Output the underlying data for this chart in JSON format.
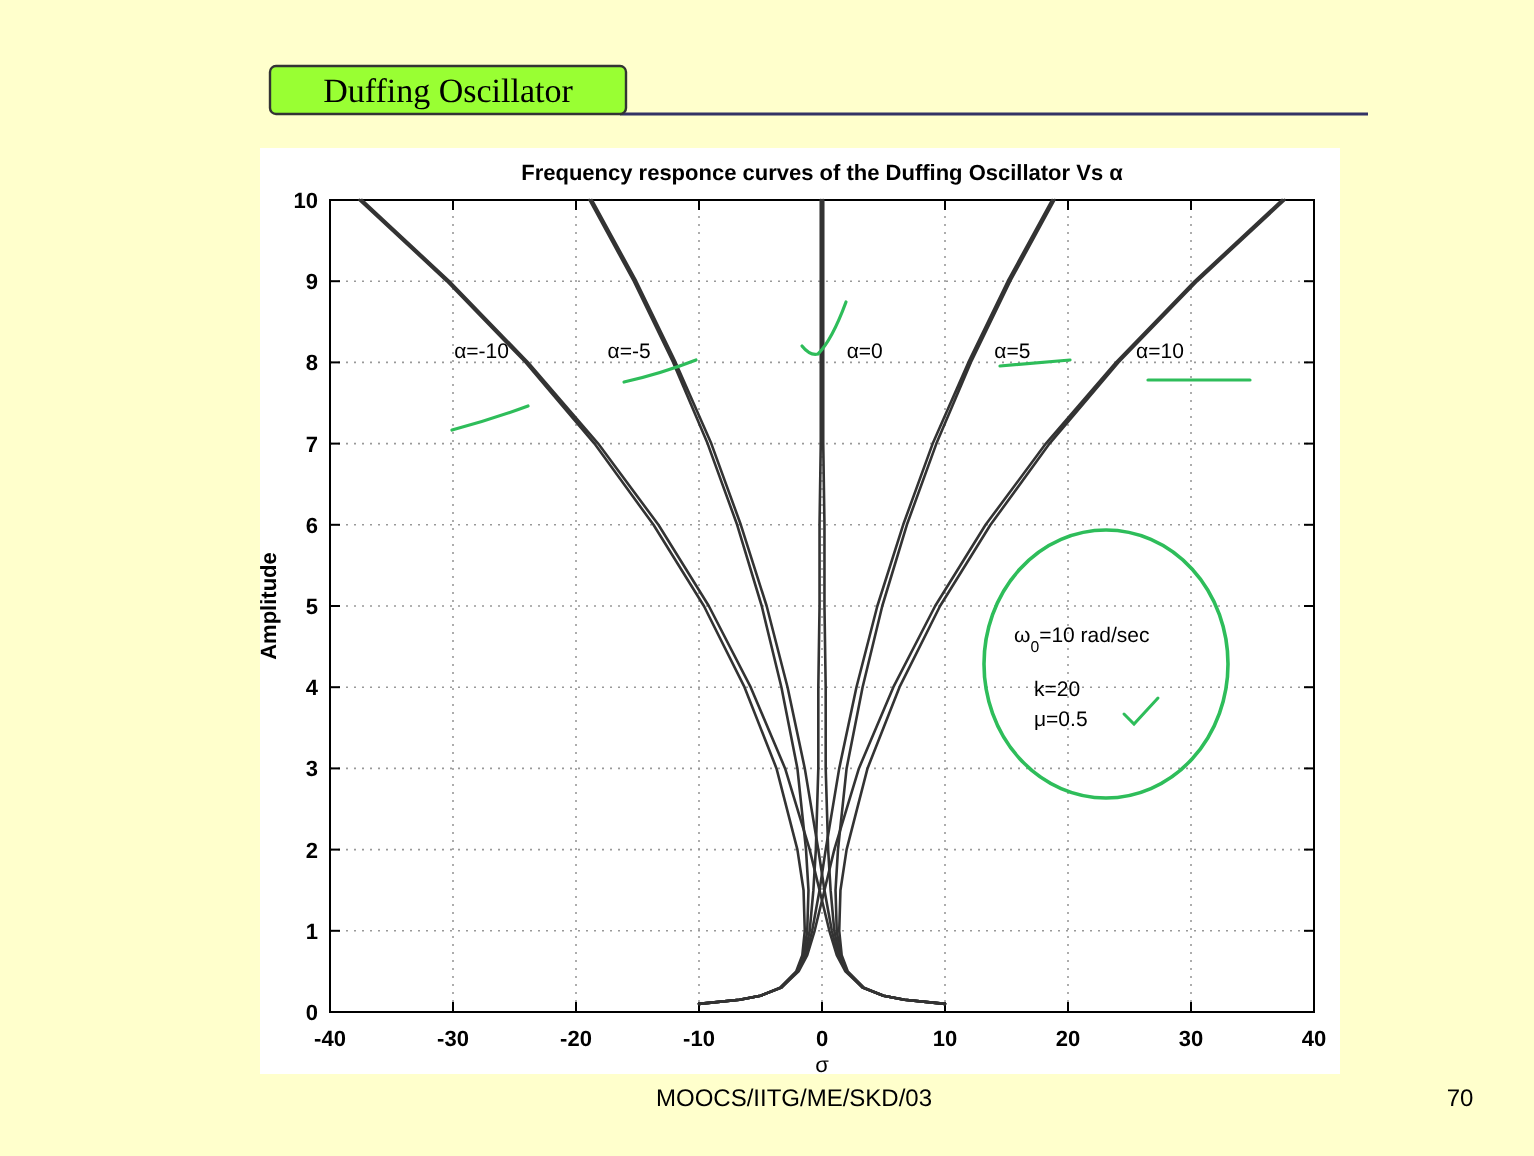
{
  "chart_data": {
    "type": "line",
    "title": "Duffing Oscillator",
    "subtitle": "Frequency responce curves of the Duffing Oscillator Vs α",
    "xlabel": "σ",
    "ylabel": "Amplitude",
    "xlim": [
      -40,
      40
    ],
    "xticks": [
      -40,
      -30,
      -20,
      -10,
      0,
      10,
      20,
      30,
      40
    ],
    "ylim": [
      0,
      10
    ],
    "yticks": [
      0,
      1,
      2,
      3,
      4,
      5,
      6,
      7,
      8,
      9,
      10
    ],
    "grid": true,
    "marker": "none",
    "line_style": "solid",
    "series": [
      {
        "name": "α=-10",
        "color": "#333333",
        "x": [
          -10.0,
          -6.7,
          -5.0,
          -3.4,
          -2.1,
          -1.6,
          -1.4,
          -1.5,
          -2.0,
          -3.7,
          -6.3,
          -9.6,
          -13.7,
          -18.5,
          -24.1,
          -30.5,
          -37.6,
          null,
          10.0,
          6.7,
          5.0,
          3.3,
          1.9,
          1.2,
          0.6,
          -0.2,
          -1.0,
          -3.0,
          -5.8,
          -9.2,
          -13.3,
          -18.2,
          -23.9,
          -30.3,
          -37.4
        ],
        "values": [
          0.1,
          0.15,
          0.2,
          0.3,
          0.5,
          0.7,
          1,
          1.5,
          2,
          3,
          4,
          5,
          6,
          7,
          8,
          9,
          10,
          null,
          0.1,
          0.15,
          0.2,
          0.3,
          0.5,
          0.7,
          1,
          1.5,
          2,
          3,
          4,
          5,
          6,
          7,
          8,
          9,
          10
        ]
      },
      {
        "name": "α=-5",
        "color": "#333333",
        "x": [
          -10.0,
          -6.7,
          -5.0,
          -3.4,
          -2.0,
          -1.5,
          -1.2,
          -1.1,
          -1.3,
          -2.0,
          -3.3,
          -4.9,
          -6.9,
          -9.3,
          -12.1,
          -15.3,
          -18.9,
          null,
          10.0,
          6.7,
          5.0,
          3.3,
          2.0,
          1.3,
          0.8,
          0.2,
          -0.3,
          -1.4,
          -2.8,
          -4.5,
          -6.6,
          -9.0,
          -11.9,
          -15.1,
          -18.7
        ],
        "values": [
          0.1,
          0.15,
          0.2,
          0.3,
          0.5,
          0.7,
          1,
          1.5,
          2,
          3,
          4,
          5,
          6,
          7,
          8,
          9,
          10,
          null,
          0.1,
          0.15,
          0.2,
          0.3,
          0.5,
          0.7,
          1,
          1.5,
          2,
          3,
          4,
          5,
          6,
          7,
          8,
          9,
          10
        ]
      },
      {
        "name": "α=0",
        "color": "#333333",
        "x": [
          -10.0,
          -6.7,
          -5.0,
          -3.3,
          -2.0,
          -1.4,
          -1.0,
          -0.7,
          -0.5,
          -0.3,
          -0.3,
          -0.2,
          -0.2,
          -0.1,
          -0.1,
          -0.1,
          -0.1,
          null,
          10.0,
          6.7,
          5.0,
          3.3,
          2.0,
          1.4,
          1.0,
          0.7,
          0.5,
          0.3,
          0.3,
          0.2,
          0.2,
          0.1,
          0.1,
          0.1,
          0.1
        ],
        "values": [
          0.1,
          0.15,
          0.2,
          0.3,
          0.5,
          0.7,
          1,
          1.5,
          2,
          3,
          4,
          5,
          6,
          7,
          8,
          9,
          10,
          null,
          0.1,
          0.15,
          0.2,
          0.3,
          0.5,
          0.7,
          1,
          1.5,
          2,
          3,
          4,
          5,
          6,
          7,
          8,
          9,
          10
        ]
      },
      {
        "name": "α=5",
        "color": "#333333",
        "x": [
          -10.0,
          -6.7,
          -5.0,
          -3.3,
          -2.0,
          -1.3,
          -0.8,
          -0.2,
          0.3,
          1.4,
          2.8,
          4.5,
          6.6,
          9.0,
          11.9,
          15.1,
          18.7,
          null,
          10.0,
          6.7,
          5.0,
          3.4,
          2.0,
          1.5,
          1.2,
          1.1,
          1.3,
          2.0,
          3.3,
          4.9,
          6.9,
          9.3,
          12.1,
          15.3,
          18.9
        ],
        "values": [
          0.1,
          0.15,
          0.2,
          0.3,
          0.5,
          0.7,
          1,
          1.5,
          2,
          3,
          4,
          5,
          6,
          7,
          8,
          9,
          10,
          null,
          0.1,
          0.15,
          0.2,
          0.3,
          0.5,
          0.7,
          1,
          1.5,
          2,
          3,
          4,
          5,
          6,
          7,
          8,
          9,
          10
        ]
      },
      {
        "name": "α=10",
        "color": "#333333",
        "x": [
          -10.0,
          -6.7,
          -5.0,
          -3.3,
          -1.9,
          -1.2,
          -0.6,
          0.2,
          1.0,
          3.0,
          5.8,
          9.2,
          13.3,
          18.2,
          23.9,
          30.3,
          37.4,
          null,
          10.0,
          6.7,
          5.0,
          3.4,
          2.1,
          1.6,
          1.4,
          1.5,
          2.0,
          3.7,
          6.3,
          9.6,
          13.7,
          18.5,
          24.1,
          30.5,
          37.6
        ],
        "values": [
          0.1,
          0.15,
          0.2,
          0.3,
          0.5,
          0.7,
          1,
          1.5,
          2,
          3,
          4,
          5,
          6,
          7,
          8,
          9,
          10,
          null,
          0.1,
          0.15,
          0.2,
          0.3,
          0.5,
          0.7,
          1,
          1.5,
          2,
          3,
          4,
          5,
          6,
          7,
          8,
          9,
          10
        ]
      }
    ],
    "annotations": [
      "ω$_{0}$=10 rad/sec",
      "k=20",
      "μ=0.5",
      "MOOCS/IITG/ME/SKD/03",
      "70"
    ]
  }
}
